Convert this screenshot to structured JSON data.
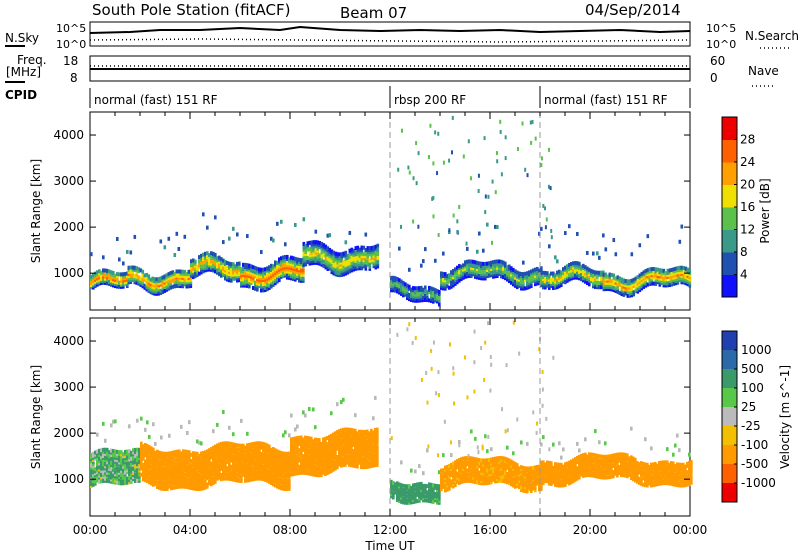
{
  "header": {
    "station": "South Pole Station (fitACF)",
    "beam": "Beam 07",
    "date": "04/Sep/2014"
  },
  "param_panels": {
    "nsky_label": "N.Sky",
    "nsearch_label": "N.Search",
    "noise_ticks": [
      "10^5",
      "10^0"
    ],
    "freq_label_1": "Freq.",
    "freq_label_2": "[MHz]",
    "freq_ticks": [
      "18",
      "8"
    ],
    "nave_ticks": [
      "60",
      "0"
    ],
    "nave_label": "Nave",
    "cpid_label": "CPID"
  },
  "cpid_segments": [
    {
      "label": "normal (fast) 151 RF",
      "start_hour": 0.0,
      "end_hour": 12.0
    },
    {
      "label": "rbsp 200 RF",
      "start_hour": 12.0,
      "end_hour": 18.0
    },
    {
      "label": "normal (fast) 151 RF",
      "start_hour": 18.0,
      "end_hour": 24.0
    }
  ],
  "colors": {
    "power_scale": [
      "#1010ff",
      "#2050b0",
      "#3a9a8a",
      "#5cc04c",
      "#f0e000",
      "#ffa000",
      "#ff6000",
      "#ee0000"
    ],
    "velocity_scale": [
      "#2040b0",
      "#2a6aa8",
      "#3a9a6a",
      "#58c848",
      "#bbbbbb",
      "#f2c000",
      "#ff9a00",
      "#ff6000",
      "#ee0000"
    ],
    "ground_scatter": "#b8b8b8"
  },
  "x_axis": {
    "label": "Time UT",
    "ticks": [
      "00:00",
      "04:00",
      "08:00",
      "12:00",
      "16:00",
      "20:00",
      "00:00"
    ],
    "range_hours": [
      0,
      24
    ]
  },
  "chart_data": [
    {
      "type": "heatmap",
      "ylabel": "Slant Range [km]",
      "yticks": [
        1000,
        2000,
        3000,
        4000
      ],
      "ylim": [
        200,
        4500
      ],
      "colorbar_label": "Power [dB]",
      "colorbar_ticks": [
        4,
        8,
        12,
        16,
        20,
        24,
        28
      ],
      "colorbar_range": [
        0,
        32
      ],
      "scatter_bands": [
        {
          "start_hour": 0.0,
          "end_hour": 1.5,
          "center_km": 800,
          "width_km": 300,
          "power_db": 26
        },
        {
          "start_hour": 1.5,
          "end_hour": 4.0,
          "center_km": 900,
          "width_km": 350,
          "power_db": 24
        },
        {
          "start_hour": 4.0,
          "end_hour": 6.0,
          "center_km": 1100,
          "width_km": 400,
          "power_db": 22
        },
        {
          "start_hour": 6.0,
          "end_hour": 8.5,
          "center_km": 1000,
          "width_km": 450,
          "power_db": 26
        },
        {
          "start_hour": 8.5,
          "end_hour": 11.5,
          "center_km": 1350,
          "width_km": 450,
          "power_db": 20
        },
        {
          "start_hour": 12.0,
          "end_hour": 14.0,
          "center_km": 600,
          "width_km": 300,
          "power_db": 14
        },
        {
          "start_hour": 14.0,
          "end_hour": 18.0,
          "center_km": 1000,
          "width_km": 350,
          "power_db": 16
        },
        {
          "start_hour": 18.0,
          "end_hour": 20.5,
          "center_km": 900,
          "width_km": 350,
          "power_db": 20
        },
        {
          "start_hour": 20.5,
          "end_hour": 24.0,
          "center_km": 850,
          "width_km": 350,
          "power_db": 24
        }
      ]
    },
    {
      "type": "heatmap",
      "ylabel": "Slant Range [km]",
      "yticks": [
        1000,
        2000,
        3000,
        4000
      ],
      "ylim": [
        200,
        4500
      ],
      "colorbar_label": "Velocity [m s^-1]",
      "colorbar_ticks": [
        "1000",
        "500",
        "100",
        "25",
        "-25",
        "-100",
        "-500",
        "-1000"
      ],
      "scatter_bands": [
        {
          "start_hour": 0.0,
          "end_hour": 2.0,
          "center_km": 1200,
          "width_km": 700,
          "velocity": 100
        },
        {
          "start_hour": 2.0,
          "end_hour": 8.0,
          "center_km": 1300,
          "width_km": 800,
          "velocity": -300
        },
        {
          "start_hour": 8.0,
          "end_hour": 11.5,
          "center_km": 1600,
          "width_km": 800,
          "velocity": -300
        },
        {
          "start_hour": 12.0,
          "end_hour": 14.0,
          "center_km": 800,
          "width_km": 400,
          "velocity": 200
        },
        {
          "start_hour": 14.0,
          "end_hour": 18.0,
          "center_km": 1100,
          "width_km": 500,
          "velocity": -200
        },
        {
          "start_hour": 18.0,
          "end_hour": 24.0,
          "center_km": 1200,
          "width_km": 450,
          "velocity": -300
        }
      ]
    }
  ]
}
